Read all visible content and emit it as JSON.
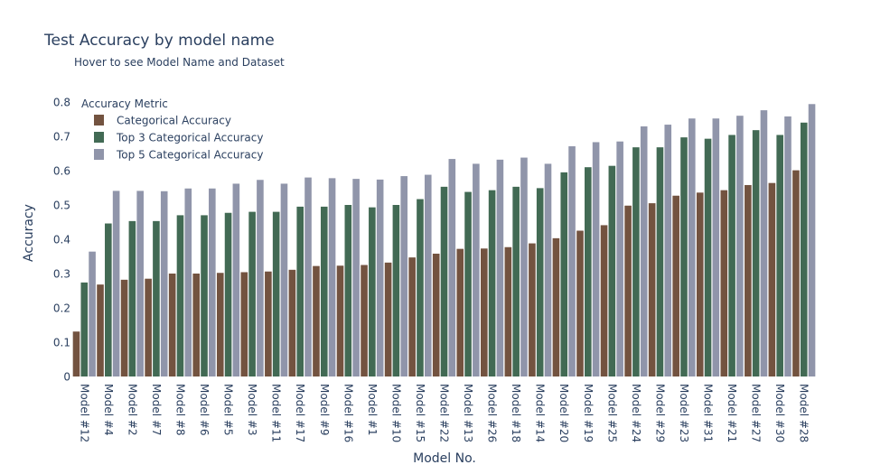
{
  "chart_data": {
    "type": "bar",
    "title": "Test Accuracy by model name",
    "subtitle": "Hover to see Model Name and Dataset",
    "xlabel": "Model No.",
    "ylabel": "Accuracy",
    "ylim": [
      0,
      0.8
    ],
    "yticks": [
      "0",
      "0.1",
      "0.2",
      "0.3",
      "0.4",
      "0.5",
      "0.6",
      "0.7",
      "0.8"
    ],
    "grid": false,
    "legend_title": "Accuracy Metric",
    "legend_position": "top-left",
    "categories": [
      "Model #12",
      "Model #4",
      "Model #2",
      "Model #7",
      "Model #8",
      "Model #6",
      "Model #5",
      "Model #3",
      "Model #11",
      "Model #17",
      "Model #9",
      "Model #16",
      "Model #1",
      "Model #10",
      "Model #15",
      "Model #22",
      "Model #13",
      "Model #26",
      "Model #18",
      "Model #14",
      "Model #20",
      "Model #19",
      "Model #25",
      "Model #24",
      "Model #29",
      "Model #23",
      "Model #31",
      "Model #21",
      "Model #27",
      "Model #30",
      "Model #28"
    ],
    "series": [
      {
        "name": "Categorical Accuracy",
        "color": "#735340",
        "values": [
          0.131,
          0.268,
          0.282,
          0.285,
          0.3,
          0.3,
          0.302,
          0.304,
          0.306,
          0.311,
          0.322,
          0.323,
          0.325,
          0.332,
          0.347,
          0.358,
          0.372,
          0.373,
          0.377,
          0.388,
          0.403,
          0.425,
          0.441,
          0.498,
          0.505,
          0.527,
          0.536,
          0.543,
          0.558,
          0.564,
          0.601
        ]
      },
      {
        "name": "Top 3 Categorical Accuracy",
        "color": "#426a54",
        "values": [
          0.274,
          0.446,
          0.453,
          0.453,
          0.47,
          0.47,
          0.477,
          0.48,
          0.48,
          0.495,
          0.495,
          0.5,
          0.493,
          0.5,
          0.517,
          0.553,
          0.538,
          0.543,
          0.553,
          0.549,
          0.595,
          0.61,
          0.614,
          0.668,
          0.668,
          0.697,
          0.693,
          0.704,
          0.718,
          0.704,
          0.74
        ]
      },
      {
        "name": "Top 5 Categorical Accuracy",
        "color": "#9095aa",
        "values": [
          0.364,
          0.541,
          0.541,
          0.54,
          0.548,
          0.548,
          0.562,
          0.573,
          0.562,
          0.58,
          0.578,
          0.576,
          0.574,
          0.584,
          0.588,
          0.634,
          0.62,
          0.632,
          0.638,
          0.62,
          0.671,
          0.683,
          0.685,
          0.729,
          0.734,
          0.752,
          0.752,
          0.76,
          0.776,
          0.758,
          0.794
        ]
      }
    ]
  }
}
